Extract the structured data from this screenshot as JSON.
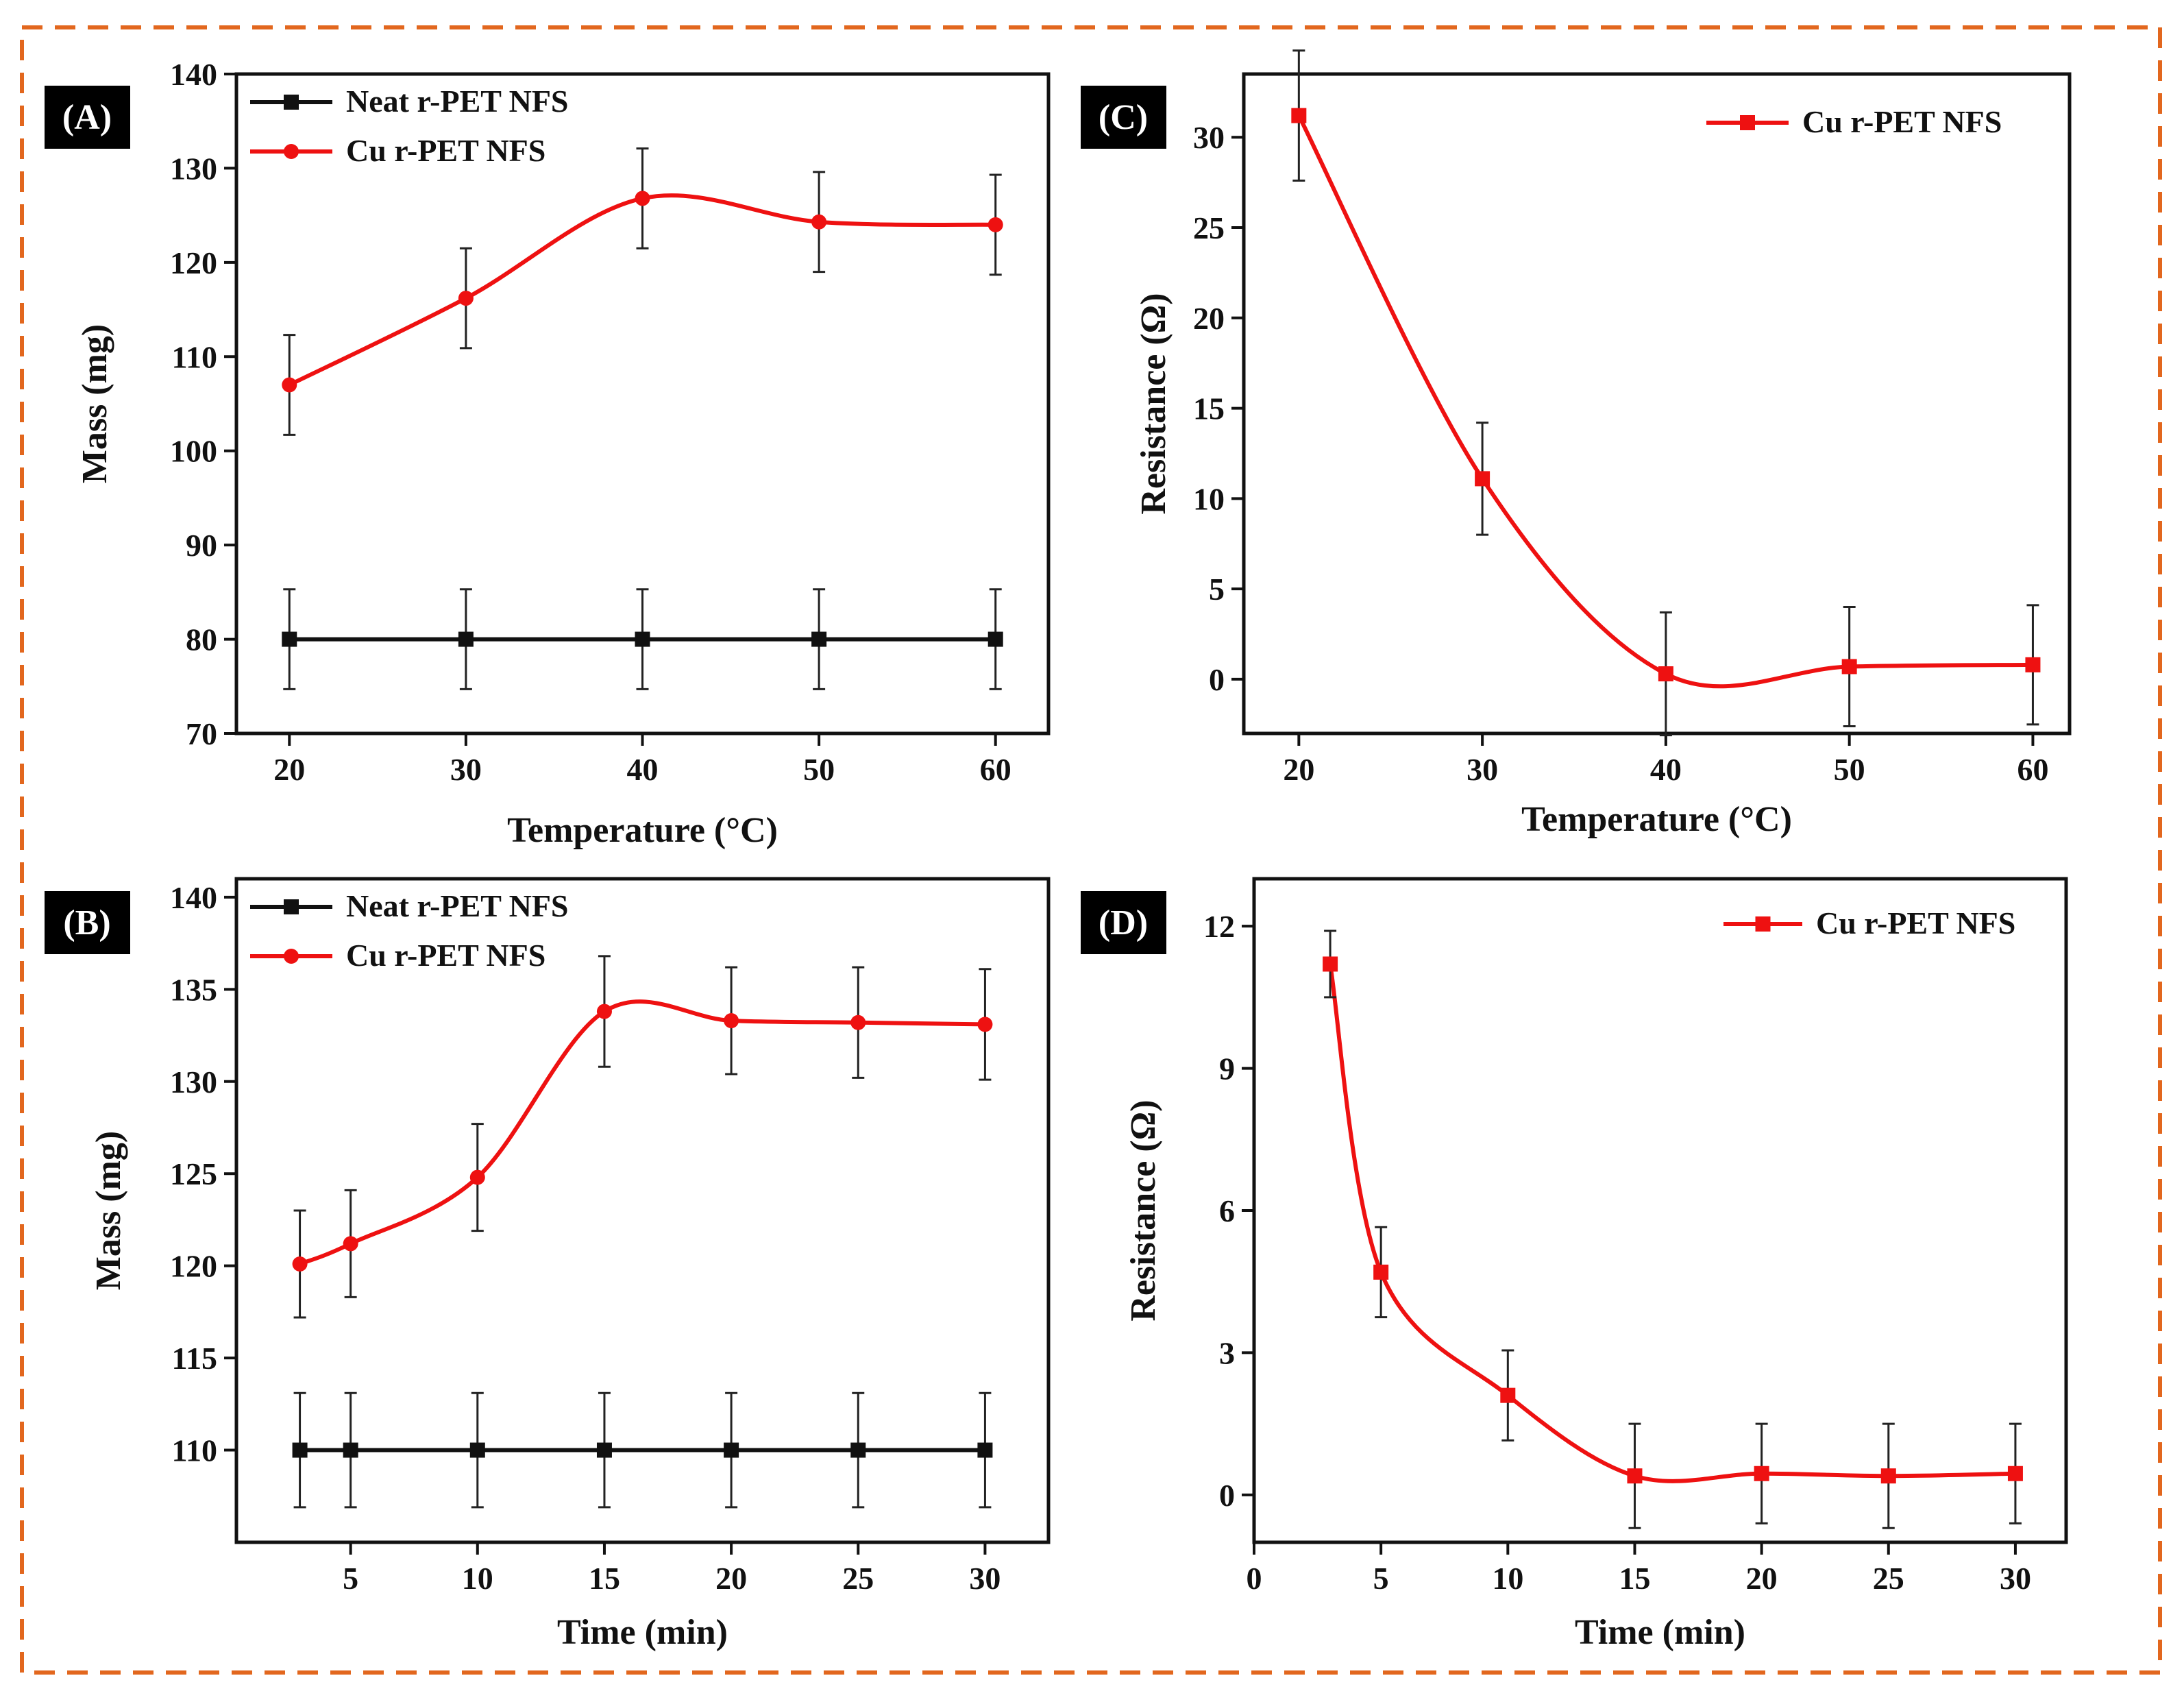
{
  "figure": {
    "border_color": "#e2671e",
    "colors": {
      "neat": "#111111",
      "cu": "#ee1111",
      "axis": "#111111",
      "label_bg": "#000000"
    }
  },
  "chart_data": [
    {
      "id": "A",
      "panel_label": "(A)",
      "type": "line",
      "xlabel": "Temperature (°C)",
      "ylabel": "Mass (mg)",
      "xlim": [
        17,
        63
      ],
      "ylim": [
        70,
        140
      ],
      "xticks": [
        20,
        30,
        40,
        50,
        60
      ],
      "yticks": [
        70,
        80,
        90,
        100,
        110,
        120,
        130,
        140
      ],
      "legend_position": "top-left",
      "series": [
        {
          "name": "Neat r-PET NFS",
          "color": "#111111",
          "marker": "square",
          "x": [
            20,
            30,
            40,
            50,
            60
          ],
          "y": [
            80,
            80,
            80,
            80,
            80
          ],
          "err": [
            5.3,
            5.3,
            5.3,
            5.3,
            5.3
          ]
        },
        {
          "name": "Cu r-PET NFS",
          "color": "#ee1111",
          "marker": "circle",
          "x": [
            20,
            30,
            40,
            50,
            60
          ],
          "y": [
            107.0,
            116.2,
            126.8,
            124.3,
            124.0
          ],
          "err": [
            5.3,
            5.3,
            5.3,
            5.3,
            5.3
          ]
        }
      ]
    },
    {
      "id": "B",
      "panel_label": "(B)",
      "type": "line",
      "xlabel": "Time (min)",
      "ylabel": "Mass (mg)",
      "xlim": [
        0.5,
        32.5
      ],
      "ylim": [
        105,
        141
      ],
      "xticks": [
        5,
        10,
        15,
        20,
        25,
        30
      ],
      "yticks": [
        110,
        115,
        120,
        125,
        130,
        135,
        140
      ],
      "legend_position": "top-left",
      "series": [
        {
          "name": "Neat r-PET NFS",
          "color": "#111111",
          "marker": "square",
          "x": [
            3,
            5,
            10,
            15,
            20,
            25,
            30
          ],
          "y": [
            110,
            110,
            110,
            110,
            110,
            110,
            110
          ],
          "err": [
            3.1,
            3.1,
            3.1,
            3.1,
            3.1,
            3.1,
            3.1
          ]
        },
        {
          "name": "Cu r-PET NFS",
          "color": "#ee1111",
          "marker": "circle",
          "x": [
            3,
            5,
            10,
            15,
            20,
            25,
            30
          ],
          "y": [
            120.1,
            121.2,
            124.8,
            133.8,
            133.3,
            133.2,
            133.1
          ],
          "err": [
            2.9,
            2.9,
            2.9,
            3.0,
            2.9,
            3.0,
            3.0
          ]
        }
      ]
    },
    {
      "id": "C",
      "panel_label": "(C)",
      "type": "line",
      "xlabel": "Temperature (°C)",
      "ylabel": "Resistance (Ω)",
      "xlim": [
        17,
        62
      ],
      "ylim": [
        -3,
        33.5
      ],
      "xticks": [
        20,
        30,
        40,
        50,
        60
      ],
      "yticks": [
        0,
        5,
        10,
        15,
        20,
        25,
        30
      ],
      "legend_position": "top-right",
      "series": [
        {
          "name": "Cu r-PET NFS",
          "color": "#ee1111",
          "marker": "square",
          "x": [
            20,
            30,
            40,
            50,
            60
          ],
          "y": [
            31.2,
            11.1,
            0.3,
            0.7,
            0.8
          ],
          "err": [
            3.6,
            3.1,
            3.4,
            3.3,
            3.3
          ]
        }
      ]
    },
    {
      "id": "D",
      "panel_label": "(D)",
      "type": "line",
      "xlabel": "Time (min)",
      "ylabel": "Resistance (Ω)",
      "xlim": [
        0,
        32
      ],
      "ylim": [
        -1,
        13
      ],
      "xticks": [
        0,
        5,
        10,
        15,
        20,
        25,
        30
      ],
      "yticks": [
        0,
        3,
        6,
        9,
        12
      ],
      "legend_position": "top-right",
      "series": [
        {
          "name": "Cu r-PET NFS",
          "color": "#ee1111",
          "marker": "square",
          "x": [
            3,
            5,
            10,
            15,
            20,
            25,
            30
          ],
          "y": [
            11.2,
            4.7,
            2.1,
            0.4,
            0.45,
            0.4,
            0.45
          ],
          "err": [
            0.7,
            0.95,
            0.95,
            1.1,
            1.05,
            1.1,
            1.05
          ]
        }
      ]
    }
  ]
}
